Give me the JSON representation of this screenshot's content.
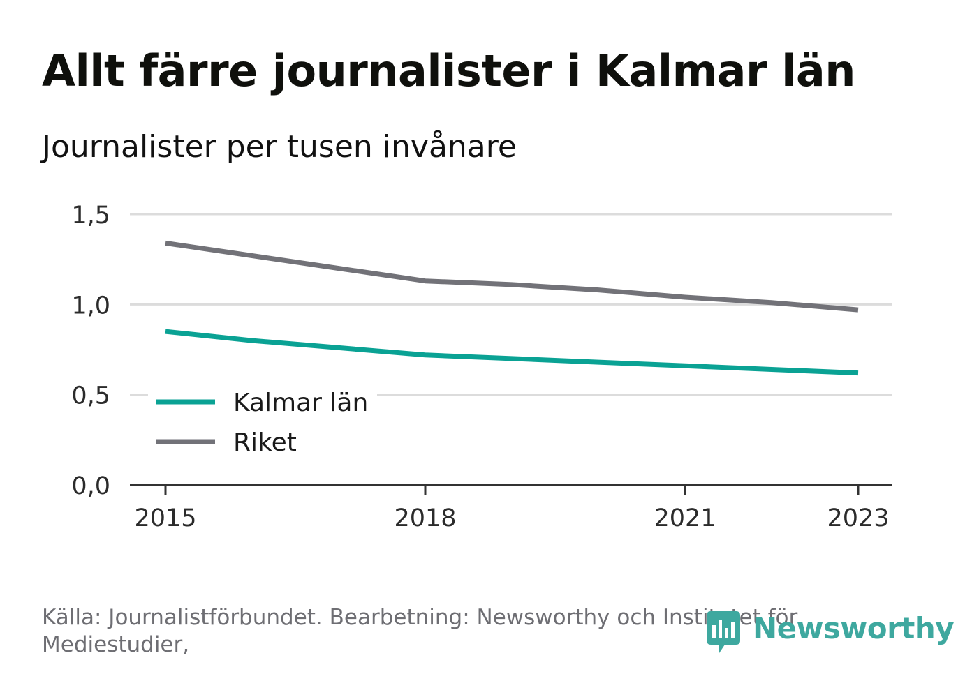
{
  "title": "Allt färre journalister i Kalmar län",
  "subtitle": "Journalister per tusen invånare",
  "source": "Källa: Journalistförbundet. Bearbetning: Newsworthy och Institutet för Mediestudier,",
  "logo": {
    "text": "Newsworthy",
    "icon": "newsworthy-logo-icon",
    "color": "#3ea89f"
  },
  "chart_data": {
    "type": "line",
    "x": [
      2015,
      2016,
      2017,
      2018,
      2019,
      2020,
      2021,
      2022,
      2023
    ],
    "series": [
      {
        "name": "Kalmar län",
        "color": "#0aa294",
        "values": [
          0.85,
          0.8,
          0.76,
          0.72,
          0.7,
          0.68,
          0.66,
          0.64,
          0.62
        ]
      },
      {
        "name": "Riket",
        "color": "#727278",
        "values": [
          1.34,
          1.27,
          1.2,
          1.13,
          1.11,
          1.08,
          1.04,
          1.01,
          0.97
        ]
      }
    ],
    "xticks": [
      2015,
      2018,
      2021,
      2023
    ],
    "xtick_labels": [
      "2015",
      "2018",
      "2021",
      "2023"
    ],
    "yticks": [
      0,
      0.5,
      1.0,
      1.5
    ],
    "ytick_labels": [
      "0,0",
      "0,5",
      "1,0",
      "1,5"
    ],
    "ylim": [
      0,
      1.5
    ],
    "xlim": [
      2015,
      2023
    ],
    "grid": true,
    "legend_position": "bottom-left"
  }
}
